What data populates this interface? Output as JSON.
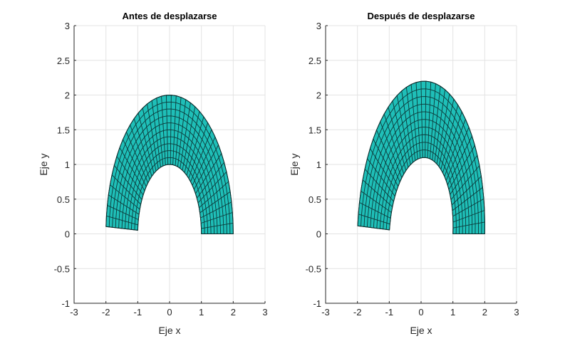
{
  "figure": {
    "background": "#ffffff",
    "mesh_color": "#1fbfb8",
    "edge_color": "#0d3a3a"
  },
  "chart_data": [
    {
      "type": "mesh",
      "title": "Antes de desplazarse",
      "xlabel": "Eje x",
      "ylabel": "Eje y",
      "xlim": [
        -3,
        3
      ],
      "ylim": [
        -1,
        3
      ],
      "xticks": [
        "-3",
        "-2",
        "-1",
        "0",
        "1",
        "2",
        "3"
      ],
      "yticks": [
        "-1",
        "-0.5",
        "0",
        "0.5",
        "1",
        "1.5",
        "2",
        "2.5",
        "3"
      ],
      "grid": true,
      "shape": {
        "description": "Half-elliptical annular arch mesh",
        "inner_radius_x": 1.0,
        "inner_radius_y": 1.0,
        "outer_radius_x": 2.0,
        "outer_radius_y": 2.0,
        "center_x": 0.0,
        "theta_start_deg": 0,
        "theta_end_deg": 177,
        "radial_divisions": 10,
        "angular_divisions": 40,
        "right_end": {
          "inner": [
            1,
            0
          ],
          "outer": [
            2,
            0
          ]
        },
        "left_end": {
          "inner": [
            -1,
            0.05
          ],
          "outer": [
            -2,
            0.09
          ]
        },
        "top": {
          "inner": [
            0,
            1.0
          ],
          "outer": [
            0,
            2.0
          ]
        }
      }
    },
    {
      "type": "mesh",
      "title": "Después de desplazarse",
      "xlabel": "Eje x",
      "ylabel": "Eje y",
      "xlim": [
        -3,
        3
      ],
      "ylim": [
        -1,
        3
      ],
      "xticks": [
        "-3",
        "-2",
        "-1",
        "0",
        "1",
        "2",
        "3"
      ],
      "yticks": [
        "-1",
        "-0.5",
        "0",
        "0.5",
        "1",
        "1.5",
        "2",
        "2.5",
        "3"
      ],
      "grid": true,
      "shape": {
        "description": "Displaced half-elliptical annular arch mesh",
        "inner_radius_x": 1.0,
        "inner_radius_y": 1.1,
        "outer_radius_x": 2.0,
        "outer_radius_y": 2.2,
        "center_x": 0.0,
        "theta_start_deg": 0,
        "theta_end_deg": 177,
        "radial_divisions": 10,
        "angular_divisions": 40,
        "right_end": {
          "inner": [
            1,
            0
          ],
          "outer": [
            2,
            0
          ]
        },
        "left_end": {
          "inner": [
            -1,
            0.05
          ],
          "outer": [
            -2,
            0.09
          ]
        },
        "top": {
          "inner": [
            0.1,
            1.1
          ],
          "outer": [
            0.1,
            2.2
          ]
        }
      }
    }
  ]
}
